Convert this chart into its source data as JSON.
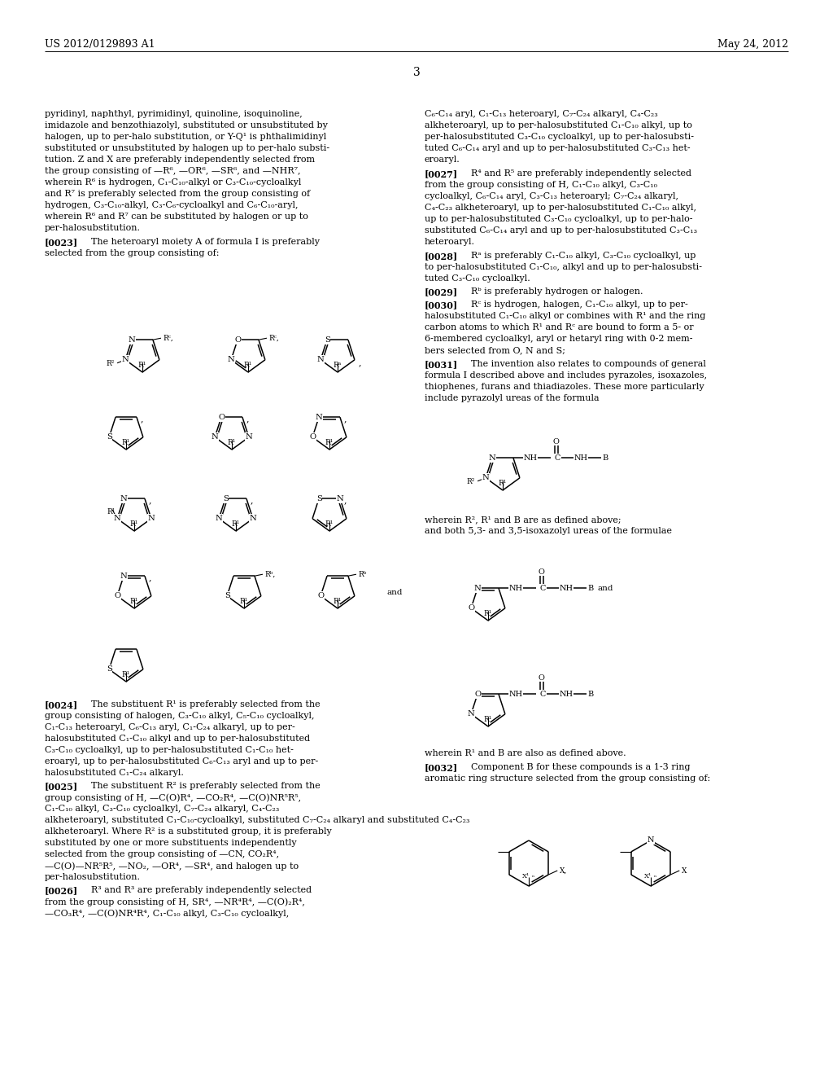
{
  "bg_color": "#ffffff",
  "header_left": "US 2012/0129893 A1",
  "header_right": "May 24, 2012",
  "page_number": "3"
}
